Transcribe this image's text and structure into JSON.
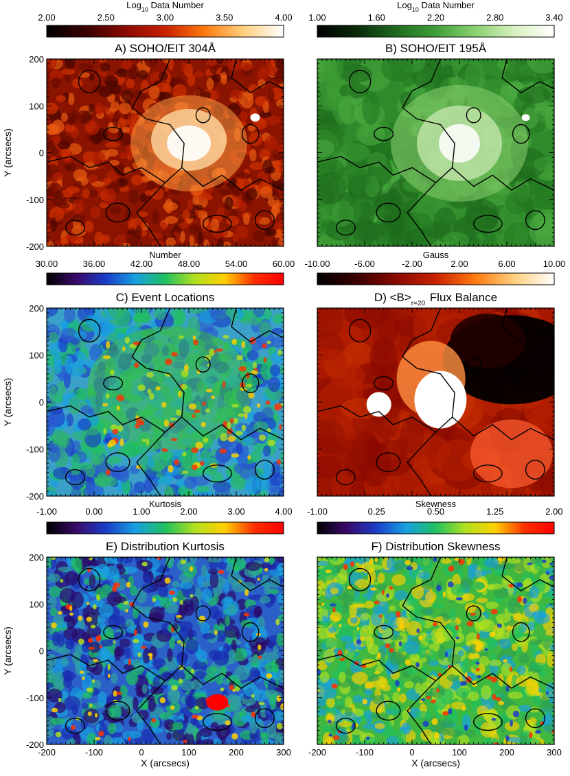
{
  "figure": {
    "panels": [
      {
        "id": "A",
        "title": "A) SOHO/EIT 304Å",
        "colorbar": {
          "label_main": "Log",
          "label_sub": "10",
          "label_rest": " Data Number",
          "ticks": [
            "2.00",
            "2.50",
            "3.00",
            "3.50",
            "4.00"
          ],
          "colormap": "red-temperature",
          "colors": [
            "#000000",
            "#3a0000",
            "#8a0a00",
            "#c82000",
            "#ff7a10",
            "#ffd080",
            "#ffffff"
          ]
        },
        "map": {
          "style": "euv304",
          "bright_region": {
            "x": 100,
            "y": 20
          }
        },
        "show_ylabel": true,
        "show_xlabel": false
      },
      {
        "id": "B",
        "title": "B) SOHO/EIT 195Å",
        "colorbar": {
          "label_main": "Log",
          "label_sub": "10",
          "label_rest": " Data Number",
          "ticks": [
            "1.00",
            "1.60",
            "2.20",
            "2.80",
            "3.40"
          ],
          "colormap": "green",
          "colors": [
            "#000000",
            "#0a2a0a",
            "#1f6a1f",
            "#3fa03a",
            "#8ad070",
            "#d8f0c0",
            "#ffffff"
          ]
        },
        "map": {
          "style": "euv195",
          "bright_region": {
            "x": 100,
            "y": 20
          }
        },
        "show_ylabel": false,
        "show_xlabel": false
      },
      {
        "id": "C",
        "title": "C) Event Locations",
        "colorbar": {
          "label_main": "Number",
          "label_sub": "",
          "label_rest": "",
          "ticks": [
            "30.00",
            "36.00",
            "42.00",
            "48.00",
            "54.00",
            "60.00"
          ],
          "colormap": "rainbow",
          "colors": [
            "#000000",
            "#3a0a6a",
            "#1a3cc8",
            "#18a0e0",
            "#20c060",
            "#b0e020",
            "#ffd000",
            "#ff3000",
            "#ff0000"
          ]
        },
        "map": {
          "style": "events"
        },
        "show_ylabel": true,
        "show_xlabel": false
      },
      {
        "id": "D",
        "title_pre": "D) <B>",
        "title_sub": "r=20",
        "title_post": " Flux Balance",
        "colorbar": {
          "label_main": "Gauss",
          "label_sub": "",
          "label_rest": "",
          "ticks": [
            "-10.00",
            "-6.00",
            "-2.00",
            "2.00",
            "6.00",
            "10.00"
          ],
          "colormap": "red-temperature",
          "colors": [
            "#000000",
            "#3a0000",
            "#8a0a00",
            "#c82000",
            "#ff7a10",
            "#ffd080",
            "#ffffff"
          ]
        },
        "map": {
          "style": "flux"
        },
        "show_ylabel": false,
        "show_xlabel": false
      },
      {
        "id": "E",
        "title": "E) Distribution Kurtosis",
        "colorbar": {
          "label_main": "Kurtosis",
          "label_sub": "",
          "label_rest": "",
          "ticks": [
            "-1.00",
            "0.00",
            "1.00",
            "2.00",
            "3.00",
            "4.00"
          ],
          "colormap": "rainbow",
          "colors": [
            "#000000",
            "#3a0a6a",
            "#1a3cc8",
            "#18a0e0",
            "#20c060",
            "#b0e020",
            "#ffd000",
            "#ff3000",
            "#ff0000"
          ]
        },
        "map": {
          "style": "kurtosis"
        },
        "show_ylabel": true,
        "show_xlabel": true
      },
      {
        "id": "F",
        "title": "F) Distribution Skewness",
        "colorbar": {
          "label_main": "Skewness",
          "label_sub": "",
          "label_rest": "",
          "ticks": [
            "-1.00",
            "0.25",
            "0.50",
            "1.25",
            "2.00"
          ],
          "colormap": "rainbow",
          "colors": [
            "#000000",
            "#3a0a6a",
            "#1a3cc8",
            "#18a0e0",
            "#20c060",
            "#b0e020",
            "#ffd000",
            "#ff3000",
            "#ff0000"
          ]
        },
        "map": {
          "style": "skewness"
        },
        "show_ylabel": false,
        "show_xlabel": true
      }
    ],
    "axes": {
      "xlabel": "X (arcsecs)",
      "ylabel": "Y (arcsecs)",
      "xticks": [
        "-200",
        "-100",
        "0",
        "100",
        "200",
        "300"
      ],
      "yticks": [
        "200",
        "100",
        "0",
        "-100",
        "-200"
      ],
      "xlim": [
        -200,
        300
      ],
      "ylim": [
        -200,
        200
      ]
    }
  },
  "chart_data": [
    {
      "type": "heatmap",
      "title": "A) SOHO/EIT 304Å",
      "colorbar_label": "Log10 Data Number",
      "colorbar_range": [
        2.0,
        4.0
      ],
      "colorbar_ticks": [
        2.0,
        2.5,
        3.0,
        3.5,
        4.0
      ],
      "xlabel": "",
      "ylabel": "Y (arcsecs)",
      "xlim": [
        -200,
        300
      ],
      "ylim": [
        -200,
        200
      ]
    },
    {
      "type": "heatmap",
      "title": "B) SOHO/EIT 195Å",
      "colorbar_label": "Log10 Data Number",
      "colorbar_range": [
        1.0,
        3.4
      ],
      "colorbar_ticks": [
        1.0,
        1.6,
        2.2,
        2.8,
        3.4
      ],
      "xlabel": "",
      "ylabel": "",
      "xlim": [
        -200,
        300
      ],
      "ylim": [
        -200,
        200
      ]
    },
    {
      "type": "heatmap",
      "title": "C) Event Locations",
      "colorbar_label": "Number",
      "colorbar_range": [
        30.0,
        60.0
      ],
      "colorbar_ticks": [
        30,
        36,
        42,
        48,
        54,
        60
      ],
      "xlabel": "",
      "ylabel": "Y (arcsecs)",
      "xlim": [
        -200,
        300
      ],
      "ylim": [
        -200,
        200
      ]
    },
    {
      "type": "heatmap",
      "title": "D) <B>r=20 Flux Balance",
      "colorbar_label": "Gauss",
      "colorbar_range": [
        -10.0,
        10.0
      ],
      "colorbar_ticks": [
        -10,
        -6,
        -2,
        2,
        6,
        10
      ],
      "xlabel": "",
      "ylabel": "",
      "xlim": [
        -200,
        300
      ],
      "ylim": [
        -200,
        200
      ]
    },
    {
      "type": "heatmap",
      "title": "E) Distribution Kurtosis",
      "colorbar_label": "Kurtosis",
      "colorbar_range": [
        -1.0,
        4.0
      ],
      "colorbar_ticks": [
        -1,
        0,
        1,
        2,
        3,
        4
      ],
      "xlabel": "X (arcsecs)",
      "ylabel": "Y (arcsecs)",
      "xlim": [
        -200,
        300
      ],
      "ylim": [
        -200,
        200
      ]
    },
    {
      "type": "heatmap",
      "title": "F) Distribution Skewness",
      "colorbar_label": "Skewness",
      "colorbar_range": [
        -1.0,
        2.0
      ],
      "colorbar_ticks": [
        -1.0,
        0.25,
        0.5,
        1.25,
        2.0
      ],
      "xlabel": "X (arcsecs)",
      "ylabel": "",
      "xlim": [
        -200,
        300
      ],
      "ylim": [
        -200,
        200
      ]
    }
  ]
}
